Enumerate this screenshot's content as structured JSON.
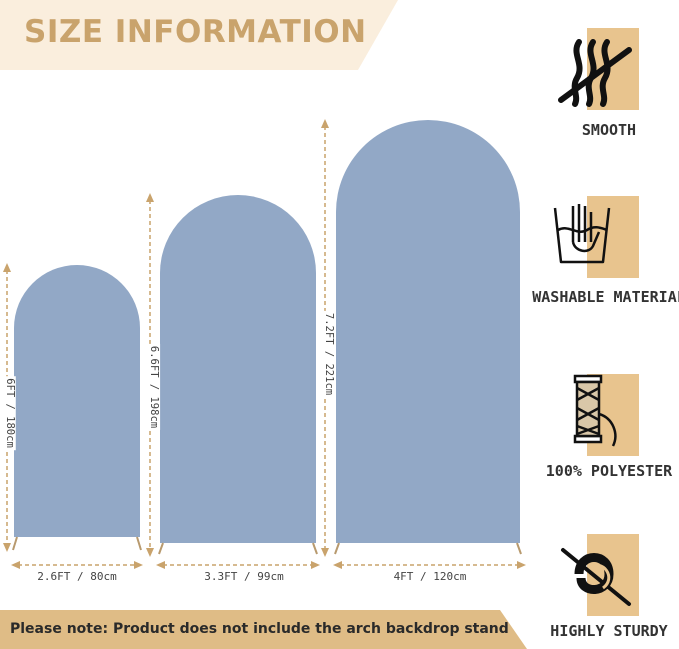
{
  "header": {
    "title": "SIZE INFORMATION"
  },
  "colors": {
    "banner": "#faeedd",
    "accent": "#c9a36c",
    "arch": "#92a8c6",
    "tile": "#e8c48e",
    "note_bar": "#dfbc86"
  },
  "arches": [
    {
      "height_label": "6FT / 180cm",
      "width_label": "2.6FT / 80cm"
    },
    {
      "height_label": "6.6FT / 198cm",
      "width_label": "3.3FT / 99cm"
    },
    {
      "height_label": "7.2FT / 221cm",
      "width_label": "4FT / 120cm"
    }
  ],
  "note": {
    "text": "Please note: Product does not include the arch backdrop stand"
  },
  "features": [
    {
      "label": "SMOOTH",
      "icon": "smooth-icon"
    },
    {
      "label": "WASHABLE MATERIAL",
      "icon": "washable-icon"
    },
    {
      "label": "100% POLYESTER",
      "icon": "polyester-thread-icon"
    },
    {
      "label": "HIGHLY STURDY",
      "icon": "sturdy-knot-icon"
    }
  ]
}
